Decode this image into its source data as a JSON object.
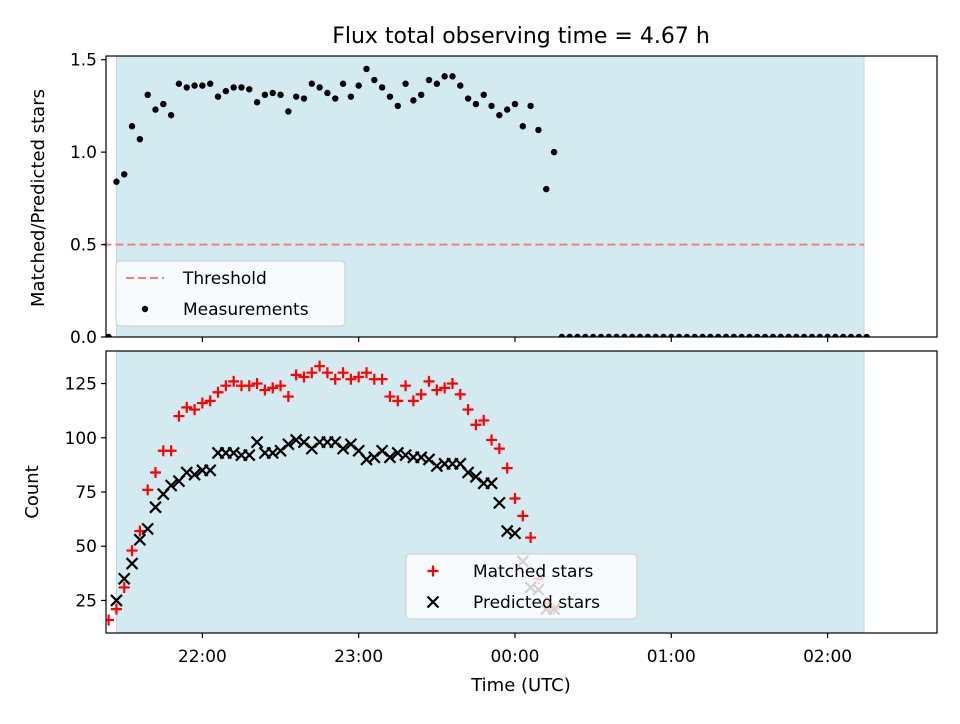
{
  "chart_data": [
    {
      "type": "scatter",
      "title": "Flux total observing time = 4.67 h",
      "ylabel": "Matched/Predicted stars",
      "xlabel": "",
      "xlim": [
        "21:23",
        "02:42"
      ],
      "ylim": [
        0,
        1.52
      ],
      "yticks": [
        "0.0",
        "0.5",
        "1.0",
        "1.5"
      ],
      "xticks": [
        "22:00",
        "23:00",
        "00:00",
        "01:00",
        "02:00"
      ],
      "xtick_labels_visible": false,
      "observing_window": [
        "21:27",
        "02:14"
      ],
      "observing_window_color": "#d3eaf0",
      "threshold": 0.5,
      "threshold_xrange": [
        "21:22",
        "02:14"
      ],
      "threshold_color": "#f08080",
      "legend": {
        "position": "lower-left",
        "entries": [
          "Threshold",
          "Measurements"
        ]
      },
      "series": [
        {
          "name": "Measurements",
          "marker": "dot",
          "color": "#000000",
          "x": [
            "21:24",
            "21:27",
            "21:30",
            "21:33",
            "21:36",
            "21:39",
            "21:42",
            "21:45",
            "21:48",
            "21:51",
            "21:54",
            "21:57",
            "22:00",
            "22:03",
            "22:06",
            "22:09",
            "22:12",
            "22:15",
            "22:18",
            "22:21",
            "22:24",
            "22:27",
            "22:30",
            "22:33",
            "22:36",
            "22:39",
            "22:42",
            "22:45",
            "22:48",
            "22:51",
            "22:54",
            "22:57",
            "23:00",
            "23:03",
            "23:06",
            "23:09",
            "23:12",
            "23:15",
            "23:18",
            "23:21",
            "23:24",
            "23:27",
            "23:30",
            "23:33",
            "23:36",
            "23:39",
            "23:42",
            "23:45",
            "23:48",
            "23:51",
            "23:54",
            "23:57",
            "00:00",
            "00:03",
            "00:06",
            "00:09",
            "00:12",
            "00:15",
            "00:18",
            "00:21",
            "00:24",
            "00:27",
            "00:30",
            "00:33",
            "00:36",
            "00:39",
            "00:42",
            "00:45",
            "00:48",
            "00:51",
            "00:54",
            "00:57",
            "01:00",
            "01:03",
            "01:06",
            "01:09",
            "01:12",
            "01:15",
            "01:18",
            "01:21",
            "01:24",
            "01:27",
            "01:30",
            "01:33",
            "01:36",
            "01:39",
            "01:42",
            "01:45",
            "01:48",
            "01:51",
            "01:54",
            "01:57",
            "02:00",
            "02:03",
            "02:06",
            "02:09",
            "02:12",
            "02:15"
          ],
          "y": [
            0.0,
            0.84,
            0.88,
            1.14,
            1.07,
            1.31,
            1.23,
            1.26,
            1.2,
            1.37,
            1.35,
            1.36,
            1.36,
            1.37,
            1.3,
            1.33,
            1.35,
            1.35,
            1.34,
            1.27,
            1.31,
            1.32,
            1.31,
            1.22,
            1.3,
            1.29,
            1.37,
            1.35,
            1.32,
            1.29,
            1.37,
            1.3,
            1.36,
            1.45,
            1.39,
            1.35,
            1.3,
            1.25,
            1.37,
            1.28,
            1.31,
            1.39,
            1.37,
            1.41,
            1.41,
            1.36,
            1.29,
            1.26,
            1.31,
            1.25,
            1.2,
            1.23,
            1.26,
            1.14,
            1.25,
            1.12,
            0.8,
            1.0,
            0.0,
            0.0,
            0.0,
            0.0,
            0.0,
            0.0,
            0.0,
            0.0,
            0.0,
            0.0,
            0.0,
            0.0,
            0.0,
            0.0,
            0.0,
            0.0,
            0.0,
            0.0,
            0.0,
            0.0,
            0.0,
            0.0,
            0.0,
            0.0,
            0.0,
            0.0,
            0.0,
            0.0,
            0.0,
            0.0,
            0.0,
            0.0,
            0.0,
            0.0,
            0.0,
            0.0,
            0.0,
            0.0,
            0.0,
            0.0
          ]
        }
      ]
    },
    {
      "type": "scatter",
      "title": "",
      "ylabel": "Count",
      "xlabel": "Time (UTC)",
      "xlim": [
        "21:23",
        "02:42"
      ],
      "ylim": [
        10,
        140
      ],
      "yticks": [
        "25",
        "50",
        "75",
        "100",
        "125"
      ],
      "xticks": [
        "22:00",
        "23:00",
        "00:00",
        "01:00",
        "02:00"
      ],
      "observing_window": [
        "21:27",
        "02:14"
      ],
      "observing_window_color": "#d3eaf0",
      "legend": {
        "position": "lower-center",
        "entries": [
          "Matched stars",
          "Predicted stars"
        ]
      },
      "series": [
        {
          "name": "Matched stars",
          "marker": "plus",
          "color": "#ff0000",
          "x": [
            "21:24",
            "21:27",
            "21:30",
            "21:33",
            "21:36",
            "21:39",
            "21:42",
            "21:45",
            "21:48",
            "21:51",
            "21:54",
            "21:57",
            "22:00",
            "22:03",
            "22:06",
            "22:09",
            "22:12",
            "22:15",
            "22:18",
            "22:21",
            "22:24",
            "22:27",
            "22:30",
            "22:33",
            "22:36",
            "22:39",
            "22:42",
            "22:45",
            "22:48",
            "22:51",
            "22:54",
            "22:57",
            "23:00",
            "23:03",
            "23:06",
            "23:09",
            "23:12",
            "23:15",
            "23:18",
            "23:21",
            "23:24",
            "23:27",
            "23:30",
            "23:33",
            "23:36",
            "23:39",
            "23:42",
            "23:45",
            "23:48",
            "23:51",
            "23:54",
            "23:57",
            "00:00",
            "00:03",
            "00:06",
            "00:09",
            "00:12",
            "00:15"
          ],
          "y": [
            16,
            21,
            31,
            48,
            57,
            76,
            84,
            94,
            94,
            110,
            114,
            113,
            116,
            117,
            121,
            124,
            126,
            124,
            124,
            125,
            122,
            123,
            124,
            119,
            129,
            128,
            130,
            133,
            130,
            127,
            130,
            127,
            128,
            130,
            127,
            127,
            119,
            117,
            124,
            117,
            120,
            126,
            122,
            123,
            125,
            120,
            113,
            106,
            108,
            99,
            95,
            86,
            72,
            64,
            54,
            35,
            24,
            21
          ]
        },
        {
          "name": "Predicted stars",
          "marker": "x",
          "color": "#000000",
          "x": [
            "21:27",
            "21:30",
            "21:33",
            "21:36",
            "21:39",
            "21:42",
            "21:45",
            "21:48",
            "21:51",
            "21:54",
            "21:57",
            "22:00",
            "22:03",
            "22:06",
            "22:09",
            "22:12",
            "22:15",
            "22:18",
            "22:21",
            "22:24",
            "22:27",
            "22:30",
            "22:33",
            "22:36",
            "22:39",
            "22:42",
            "22:45",
            "22:48",
            "22:51",
            "22:54",
            "22:57",
            "23:00",
            "23:03",
            "23:06",
            "23:09",
            "23:12",
            "23:15",
            "23:18",
            "23:21",
            "23:24",
            "23:27",
            "23:30",
            "23:33",
            "23:36",
            "23:39",
            "23:42",
            "23:45",
            "23:48",
            "23:51",
            "23:54",
            "23:57",
            "00:00",
            "00:03",
            "00:06",
            "00:09",
            "00:12",
            "00:15"
          ],
          "y": [
            25,
            35,
            42,
            53,
            58,
            68,
            74,
            78,
            80,
            84,
            83,
            85,
            85,
            93,
            93,
            93,
            92,
            92,
            98,
            93,
            93,
            94,
            97,
            99,
            98,
            95,
            98,
            98,
            98,
            95,
            97,
            94,
            90,
            91,
            94,
            91,
            93,
            92,
            91,
            91,
            90,
            87,
            88,
            88,
            88,
            84,
            82,
            79,
            79,
            70,
            57,
            56,
            43,
            31,
            30,
            21,
            21
          ]
        }
      ]
    }
  ]
}
